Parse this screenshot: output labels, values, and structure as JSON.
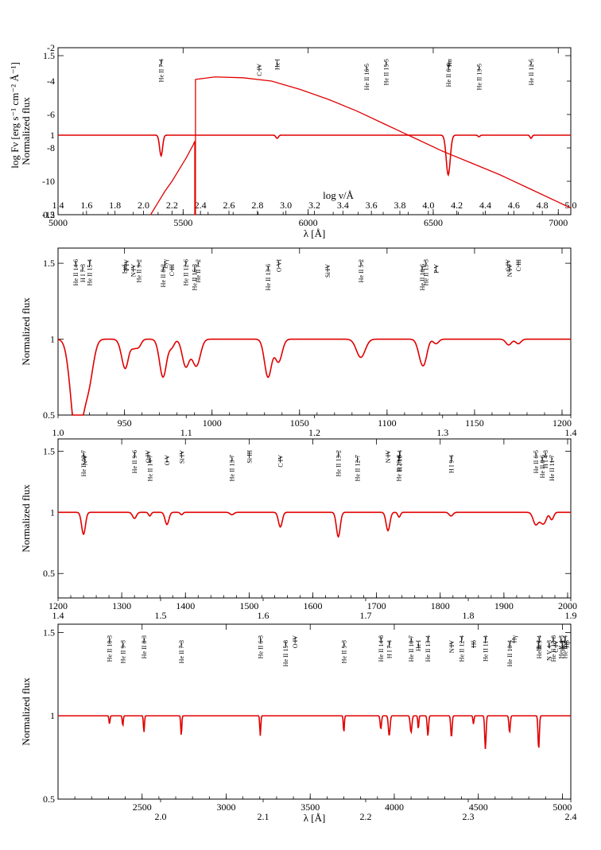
{
  "figure": {
    "name": "spectrum-atlas"
  },
  "chart_data": [
    {
      "type": "line",
      "panel": "panel-1",
      "title": "",
      "xlabel": "λ [Å]",
      "ylabel": "Normalized flux",
      "xlim": [
        5000,
        7050
      ],
      "ylim": [
        0.5,
        1.55
      ],
      "x_ticks": [
        5000,
        5500,
        6000,
        6500,
        7000
      ],
      "y_ticks": [
        0.5,
        1.0,
        1.5
      ],
      "continuum": 1.0,
      "lines": [
        {
          "label": "He II 7-4",
          "x": 5412,
          "depth": 0.13,
          "width": 6
        },
        {
          "label": "C IV",
          "x": 5804,
          "depth": 0.0,
          "width": 3
        },
        {
          "label": "He I",
          "x": 5876,
          "depth": 0.02,
          "width": 5
        },
        {
          "label": "He II 16-5",
          "x": 6233,
          "depth": 0.0,
          "width": 3
        },
        {
          "label": "He II 15-5",
          "x": 6311,
          "depth": 0.0,
          "width": 3
        },
        {
          "label": "He II 6-4",
          "x": 6560,
          "depth": 0.25,
          "width": 8
        },
        {
          "label": "Hα",
          "x": 6563,
          "depth": 0.0,
          "width": 3
        },
        {
          "label": "He II 13-5",
          "x": 6683,
          "depth": 0.01,
          "width": 4
        },
        {
          "label": "He II 12-5",
          "x": 6891,
          "depth": 0.02,
          "width": 4
        }
      ],
      "inset": {
        "type": "line",
        "xlabel": "log ν/Å",
        "ylabel": "log Fν [erg s⁻¹ cm⁻² Å⁻¹]",
        "xlim": [
          1.4,
          5.0
        ],
        "ylim": [
          -12,
          -2
        ],
        "x_ticks": [
          1.4,
          1.6,
          1.8,
          2.0,
          2.2,
          2.4,
          2.6,
          2.8,
          3.0,
          3.2,
          3.4,
          3.6,
          3.8,
          4.0,
          4.2,
          4.4,
          4.6,
          4.8,
          5.0
        ],
        "x_tick_labels": [
          "1.4",
          "1.6",
          "1.8",
          "2.0",
          "2.2",
          "2.4",
          "2.6",
          "2.8",
          "3.0",
          "3.2",
          "3.4",
          "3.6",
          "3.8",
          "4.0",
          "4.2",
          "4.4",
          "4.6",
          "4.8",
          "5.0"
        ],
        "y_ticks": [
          -2,
          -4,
          -6,
          -8,
          -10,
          -12
        ],
        "y_tick_labels": [
          "-2",
          "-4",
          "-6",
          "-8",
          "-10",
          "-12"
        ],
        "sed_points": [
          [
            2.05,
            -12.0
          ],
          [
            2.1,
            -11.3
          ],
          [
            2.15,
            -10.6
          ],
          [
            2.2,
            -10.0
          ],
          [
            2.25,
            -9.3
          ],
          [
            2.3,
            -8.6
          ],
          [
            2.35,
            -7.8
          ],
          [
            2.36,
            -7.6
          ],
          [
            2.36,
            -12.0
          ],
          [
            2.365,
            -12.0
          ],
          [
            2.365,
            -3.9
          ],
          [
            2.5,
            -3.75
          ],
          [
            2.7,
            -3.8
          ],
          [
            2.9,
            -4.0
          ],
          [
            3.1,
            -4.5
          ],
          [
            3.3,
            -5.1
          ],
          [
            3.5,
            -5.8
          ],
          [
            3.7,
            -6.6
          ],
          [
            3.9,
            -7.4
          ],
          [
            4.1,
            -8.2
          ],
          [
            4.3,
            -8.9
          ],
          [
            4.5,
            -9.6
          ],
          [
            4.7,
            -10.4
          ],
          [
            5.0,
            -11.6
          ]
        ]
      }
    },
    {
      "type": "line",
      "panel": "panel-2",
      "title": "",
      "xlabel": "",
      "ylabel": "Normalized flux",
      "xlim": [
        912,
        1205
      ],
      "ylim": [
        0.5,
        1.6
      ],
      "x_ticks": [
        950,
        1000,
        1050,
        1100,
        1150,
        1200
      ],
      "y_ticks": [
        0.5,
        1.0,
        1.5
      ],
      "continuum": 1.0,
      "lines": [
        {
          "label": "He II 14-6",
          "x": 922,
          "depth": 0.55,
          "width": 3
        },
        {
          "label": "H I 7-3",
          "x": 926,
          "depth": 0.25,
          "width": 3
        },
        {
          "label": "He II 15-4",
          "x": 930,
          "depth": 0.2,
          "width": 2.5
        },
        {
          "label": "Lyδ",
          "x": 950,
          "depth": 0.15,
          "width": 2
        },
        {
          "label": "P IV",
          "x": 951,
          "depth": 0.05,
          "width": 1.5
        },
        {
          "label": "N IV",
          "x": 955,
          "depth": 0.05,
          "width": 1.5
        },
        {
          "label": "He II 9-2",
          "x": 958,
          "depth": 0.05,
          "width": 1.5
        },
        {
          "label": "He II 8-2",
          "x": 972,
          "depth": 0.25,
          "width": 2
        },
        {
          "label": "Lyγ",
          "x": 973,
          "depth": 0.0,
          "width": 1.5
        },
        {
          "label": "C III",
          "x": 977,
          "depth": 0.05,
          "width": 1.5
        },
        {
          "label": "He II 12-6",
          "x": 985,
          "depth": 0.18,
          "width": 2
        },
        {
          "label": "He II 16-3",
          "x": 990,
          "depth": 0.1,
          "width": 2
        },
        {
          "label": "He II 7-2",
          "x": 992,
          "depth": 0.1,
          "width": 2
        },
        {
          "label": "He II 13-6",
          "x": 1032,
          "depth": 0.25,
          "width": 2
        },
        {
          "label": "O VI",
          "x": 1038,
          "depth": 0.15,
          "width": 2
        },
        {
          "label": "Si IV",
          "x": 1066,
          "depth": 0.0,
          "width": 2
        },
        {
          "label": "He II 5-2",
          "x": 1085,
          "depth": 0.12,
          "width": 2.5
        },
        {
          "label": "He II 10-6",
          "x": 1120,
          "depth": 0.15,
          "width": 2
        },
        {
          "label": "He II 15-3",
          "x": 1122,
          "depth": 0.05,
          "width": 1.5
        },
        {
          "label": "P V",
          "x": 1128,
          "depth": 0.03,
          "width": 1.5
        },
        {
          "label": "C IV",
          "x": 1169,
          "depth": 0.02,
          "width": 1.5
        },
        {
          "label": "N IV",
          "x": 1170,
          "depth": 0.02,
          "width": 1.5
        },
        {
          "label": "C III",
          "x": 1175,
          "depth": 0.03,
          "width": 1.5
        }
      ],
      "secondary_axis": {
        "xlim": [
          1.0,
          1.4
        ],
        "ticks": [
          1.0,
          1.1,
          1.2,
          1.3,
          1.4
        ],
        "tick_labels": [
          "1.0",
          "1.1",
          "1.2",
          "1.3",
          "1.4"
        ]
      }
    },
    {
      "type": "line",
      "panel": "panel-3",
      "title": "",
      "xlabel": "",
      "ylabel": "Normalized flux",
      "xlim": [
        1200,
        2005
      ],
      "ylim": [
        0.3,
        1.6
      ],
      "x_ticks": [
        1200,
        1300,
        1400,
        1500,
        1600,
        1700,
        1800,
        1900,
        2000
      ],
      "y_ticks": [
        0.5,
        1.0,
        1.5
      ],
      "continuum": 1.0,
      "lines": [
        {
          "label": "He II 13-7",
          "x": 1240,
          "depth": 0.18,
          "width": 3
        },
        {
          "label": "N V",
          "x": 1242,
          "depth": 0.0,
          "width": 2
        },
        {
          "label": "He II 9-6",
          "x": 1320,
          "depth": 0.05,
          "width": 3
        },
        {
          "label": "He II 14-7",
          "x": 1344,
          "depth": 0.03,
          "width": 2
        },
        {
          "label": "O IV",
          "x": 1341,
          "depth": 0.0,
          "width": 2
        },
        {
          "label": "O V",
          "x": 1371,
          "depth": 0.1,
          "width": 3
        },
        {
          "label": "Si IV",
          "x": 1394,
          "depth": 0.02,
          "width": 2
        },
        {
          "label": "He II 13-7",
          "x": 1473,
          "depth": 0.02,
          "width": 3
        },
        {
          "label": "Si III",
          "x": 1500,
          "depth": 0.0,
          "width": 2
        },
        {
          "label": "C IV",
          "x": 1549,
          "depth": 0.12,
          "width": 3
        },
        {
          "label": "He II 13-2",
          "x": 1640,
          "depth": 0.2,
          "width": 3
        },
        {
          "label": "He II 12-7",
          "x": 1670,
          "depth": 0.0,
          "width": 2
        },
        {
          "label": "N IV",
          "x": 1718,
          "depth": 0.15,
          "width": 3
        },
        {
          "label": "He II 20-8",
          "x": 1735,
          "depth": 0.02,
          "width": 2
        },
        {
          "label": "H I 10-4",
          "x": 1736,
          "depth": 0.02,
          "width": 2
        },
        {
          "label": "H I 9-4",
          "x": 1817,
          "depth": 0.03,
          "width": 3
        },
        {
          "label": "He II 6-5",
          "x": 1950,
          "depth": 0.1,
          "width": 4
        },
        {
          "label": "He II 8-6",
          "x": 1960,
          "depth": 0.08,
          "width": 4
        },
        {
          "label": "H I 4-3",
          "x": 1965,
          "depth": 0.04,
          "width": 3
        },
        {
          "label": "He II 11-7",
          "x": 1975,
          "depth": 0.06,
          "width": 3
        }
      ],
      "secondary_axis": {
        "xlim": [
          1.4,
          1.9
        ],
        "ticks": [
          1.4,
          1.5,
          1.6,
          1.7,
          1.8,
          1.9
        ],
        "tick_labels": [
          "1.4",
          "1.5",
          "1.6",
          "1.7",
          "1.8",
          "1.9"
        ]
      }
    },
    {
      "type": "line",
      "panel": "panel-4",
      "title": "",
      "xlabel": "λ [Å]",
      "ylabel": "Normalized flux",
      "xlim": [
        2000,
        5050
      ],
      "ylim": [
        0.5,
        1.55
      ],
      "x_ticks": [
        2500,
        3000,
        3500,
        4000,
        4500,
        5000
      ],
      "y_ticks": [
        0.5,
        1.0,
        1.5
      ],
      "continuum": 1.0,
      "lines": [
        {
          "label": "He II 10-3",
          "x": 2306,
          "depth": 0.05,
          "width": 3
        },
        {
          "label": "He II 9-3",
          "x": 2385,
          "depth": 0.06,
          "width": 3
        },
        {
          "label": "He II 8-3",
          "x": 2511,
          "depth": 0.1,
          "width": 3
        },
        {
          "label": "He II 7-3",
          "x": 2733,
          "depth": 0.12,
          "width": 3
        },
        {
          "label": "He II 6-3",
          "x": 3203,
          "depth": 0.12,
          "width": 3
        },
        {
          "label": "He II 15-8",
          "x": 3353,
          "depth": 0.0,
          "width": 2
        },
        {
          "label": "O IV",
          "x": 3410,
          "depth": 0.0,
          "width": 2
        },
        {
          "label": "He II 5-3",
          "x": 3700,
          "depth": 0.1,
          "width": 3
        },
        {
          "label": "He II 14-8",
          "x": 3920,
          "depth": 0.08,
          "width": 4
        },
        {
          "label": "H I 7-4",
          "x": 3970,
          "depth": 0.12,
          "width": 5
        },
        {
          "label": "He II 10-7",
          "x": 4100,
          "depth": 0.1,
          "width": 5
        },
        {
          "label": "He I",
          "x": 4143,
          "depth": 0.08,
          "width": 3
        },
        {
          "label": "He II 13-4",
          "x": 4200,
          "depth": 0.12,
          "width": 4
        },
        {
          "label": "N IV",
          "x": 4340,
          "depth": 0.13,
          "width": 4
        },
        {
          "label": "He II 12-4",
          "x": 4400,
          "depth": 0.0,
          "width": 2
        },
        {
          "label": "Hδ",
          "x": 4471,
          "depth": 0.05,
          "width": 3
        },
        {
          "label": "He II 11-4",
          "x": 4542,
          "depth": 0.2,
          "width": 4
        },
        {
          "label": "He II 10-4",
          "x": 4686,
          "depth": 0.1,
          "width": 4
        },
        {
          "label": "Hγ",
          "x": 4713,
          "depth": 0.0,
          "width": 2
        },
        {
          "label": "He I",
          "x": 4859,
          "depth": 0.2,
          "width": 4
        },
        {
          "label": "He II 9-4",
          "x": 4861,
          "depth": 0.0,
          "width": 2
        },
        {
          "label": "N V 4-3",
          "x": 4920,
          "depth": 0.0,
          "width": 2
        },
        {
          "label": "He II 13-8",
          "x": 4945,
          "depth": 0.0,
          "width": 2
        },
        {
          "label": "C IV",
          "x": 4960,
          "depth": 0.0,
          "width": 2
        },
        {
          "label": "He II 4-3",
          "x": 4990,
          "depth": 0.0,
          "width": 2
        },
        {
          "label": "He I",
          "x": 5000,
          "depth": 0.0,
          "width": 2
        },
        {
          "label": "He II 8-4",
          "x": 5015,
          "depth": 0.0,
          "width": 2
        },
        {
          "label": "Hβ",
          "x": 5025,
          "depth": 0.0,
          "width": 2
        }
      ],
      "secondary_axis": {
        "xlim": [
          1.9,
          2.4
        ],
        "ticks": [
          2.0,
          2.1,
          2.2,
          2.3,
          2.4
        ],
        "tick_labels": [
          "2.0",
          "2.1",
          "2.2",
          "2.3",
          "2.4"
        ]
      }
    }
  ]
}
